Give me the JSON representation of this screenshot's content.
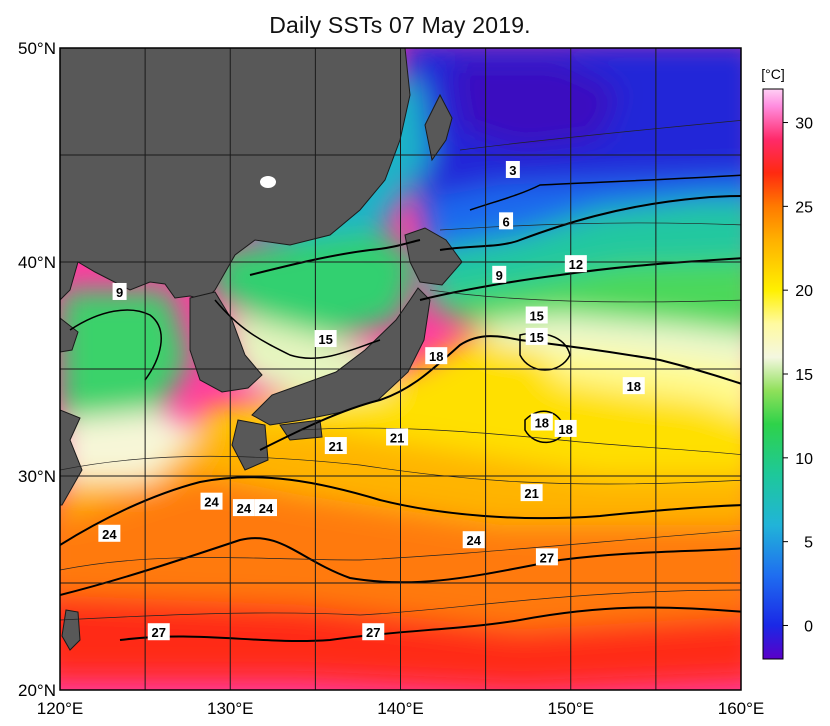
{
  "title": "Daily SSTs 07 May 2019.",
  "map": {
    "lon_range": [
      120,
      160
    ],
    "lat_range": [
      20,
      50
    ],
    "lon_ticks": [
      "120°E",
      "130°E",
      "140°E",
      "150°E",
      "160°E"
    ],
    "lat_ticks": [
      "20°N",
      "30°N",
      "40°N",
      "50°N"
    ],
    "land_color": "#585858",
    "grid_color": "#1a1a1a"
  },
  "colorbar": {
    "unit": "[°C]",
    "ticks": [
      "0",
      "5",
      "10",
      "15",
      "20",
      "25",
      "30"
    ],
    "range": [
      -2,
      32
    ],
    "stops": [
      {
        "v": -2,
        "c": "#5a00c8"
      },
      {
        "v": 0,
        "c": "#1a28e6"
      },
      {
        "v": 3,
        "c": "#1f6ef0"
      },
      {
        "v": 6,
        "c": "#21b4d8"
      },
      {
        "v": 9,
        "c": "#1ec89a"
      },
      {
        "v": 12,
        "c": "#2ed24a"
      },
      {
        "v": 14,
        "c": "#8fe05a"
      },
      {
        "v": 16,
        "c": "#f4f7e0"
      },
      {
        "v": 18,
        "c": "#fffaa0"
      },
      {
        "v": 20,
        "c": "#fff000"
      },
      {
        "v": 23,
        "c": "#ffb000"
      },
      {
        "v": 25,
        "c": "#ff7a00"
      },
      {
        "v": 27,
        "c": "#ff2a10"
      },
      {
        "v": 29,
        "c": "#ff2a6a"
      },
      {
        "v": 31,
        "c": "#ff8ee0"
      },
      {
        "v": 32,
        "c": "#ffd0f5"
      }
    ]
  },
  "contour_labels": [
    {
      "text": "3",
      "lon": 146.6,
      "lat": 44.3
    },
    {
      "text": "6",
      "lon": 146.2,
      "lat": 41.9
    },
    {
      "text": "9",
      "lon": 145.8,
      "lat": 39.4
    },
    {
      "text": "12",
      "lon": 150.3,
      "lat": 39.9
    },
    {
      "text": "9",
      "lon": 123.5,
      "lat": 38.6
    },
    {
      "text": "15",
      "lon": 135.6,
      "lat": 36.4
    },
    {
      "text": "18",
      "lon": 142.1,
      "lat": 35.6
    },
    {
      "text": "15",
      "lon": 148.0,
      "lat": 37.5
    },
    {
      "text": "15",
      "lon": 148.0,
      "lat": 36.5
    },
    {
      "text": "18",
      "lon": 153.7,
      "lat": 34.2
    },
    {
      "text": "18",
      "lon": 148.3,
      "lat": 32.5
    },
    {
      "text": "18",
      "lon": 149.7,
      "lat": 32.2
    },
    {
      "text": "21",
      "lon": 136.2,
      "lat": 31.4
    },
    {
      "text": "21",
      "lon": 139.8,
      "lat": 31.8
    },
    {
      "text": "21",
      "lon": 147.7,
      "lat": 29.2
    },
    {
      "text": "24",
      "lon": 122.9,
      "lat": 27.3
    },
    {
      "text": "24",
      "lon": 128.9,
      "lat": 28.8
    },
    {
      "text": "24",
      "lon": 130.8,
      "lat": 28.5
    },
    {
      "text": "24",
      "lon": 132.1,
      "lat": 28.5
    },
    {
      "text": "24",
      "lon": 144.3,
      "lat": 27.0
    },
    {
      "text": "27",
      "lon": 148.6,
      "lat": 26.2
    },
    {
      "text": "27",
      "lon": 125.8,
      "lat": 22.7
    },
    {
      "text": "27",
      "lon": 138.4,
      "lat": 22.7
    }
  ]
}
